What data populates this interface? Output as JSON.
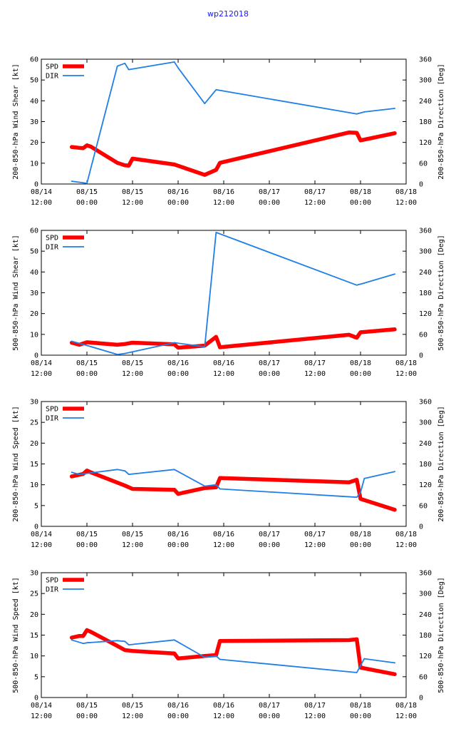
{
  "title": "wp212018",
  "colors": {
    "spd": "#ff0000",
    "dir": "#1f7fe6",
    "axis": "#000000",
    "title": "#1a1aff"
  },
  "x_ticks": [
    {
      "t": 0,
      "line1": "08/14",
      "line2": "12:00"
    },
    {
      "t": 12,
      "line1": "08/15",
      "line2": "00:00"
    },
    {
      "t": 24,
      "line1": "08/15",
      "line2": "12:00"
    },
    {
      "t": 36,
      "line1": "08/16",
      "line2": "00:00"
    },
    {
      "t": 48,
      "line1": "08/16",
      "line2": "12:00"
    },
    {
      "t": 60,
      "line1": "08/17",
      "line2": "00:00"
    },
    {
      "t": 72,
      "line1": "08/17",
      "line2": "12:00"
    },
    {
      "t": 84,
      "line1": "08/18",
      "line2": "00:00"
    },
    {
      "t": 96,
      "line1": "08/18",
      "line2": "12:00"
    }
  ],
  "chart_data": [
    {
      "type": "line",
      "ylabel": "200-850-hPa Wind Shear [kt]",
      "y2label": "200-850-hPa Direction [Deg]",
      "xlim": [
        0,
        96
      ],
      "ylim": [
        0,
        60
      ],
      "y2lim": [
        0,
        360
      ],
      "yticks": [
        0,
        10,
        20,
        30,
        40,
        50,
        60
      ],
      "y2ticks": [
        0,
        60,
        120,
        180,
        240,
        300,
        360
      ],
      "legend": [
        "SPD",
        "DIR"
      ],
      "series": [
        {
          "name": "SPD",
          "axis": "left",
          "x": [
            8,
            10,
            11,
            12,
            13,
            20,
            22,
            23,
            24,
            35,
            43,
            46,
            47,
            81,
            83,
            84,
            93
          ],
          "y": [
            17.8,
            17.4,
            17.2,
            18.6,
            18.0,
            10.2,
            9.0,
            8.8,
            12.2,
            9.4,
            4.4,
            6.8,
            10.2,
            24.8,
            24.6,
            21.0,
            24.4
          ]
        },
        {
          "name": "DIR",
          "axis": "right",
          "x": [
            8,
            12,
            20,
            22,
            23,
            35,
            36,
            43,
            46,
            83,
            85,
            93
          ],
          "y": [
            8,
            2,
            340,
            348,
            330,
            352,
            335,
            232,
            272,
            202,
            208,
            218
          ]
        }
      ]
    },
    {
      "type": "line",
      "ylabel": "500-850-hPa Wind Shear [kt]",
      "y2label": "500-850-hPa Direction [Deg]",
      "xlim": [
        0,
        96
      ],
      "ylim": [
        0,
        60
      ],
      "y2lim": [
        0,
        360
      ],
      "yticks": [
        0,
        10,
        20,
        30,
        40,
        50,
        60
      ],
      "y2ticks": [
        0,
        60,
        120,
        180,
        240,
        300,
        360
      ],
      "legend": [
        "SPD",
        "DIR"
      ],
      "series": [
        {
          "name": "SPD",
          "axis": "left",
          "x": [
            8,
            10,
            12,
            20,
            22,
            24,
            35,
            36,
            43,
            46,
            47,
            81,
            83,
            84,
            93
          ],
          "y": [
            6.0,
            5.0,
            6.2,
            5.0,
            5.4,
            6.0,
            5.2,
            3.6,
            4.6,
            8.8,
            3.8,
            9.8,
            8.4,
            11.0,
            12.4
          ]
        },
        {
          "name": "DIR",
          "axis": "right",
          "x": [
            8,
            12,
            20,
            22,
            35,
            43,
            46,
            83,
            85,
            93
          ],
          "y": [
            40,
            28,
            2,
            5,
            36,
            24,
            354,
            202,
            208,
            234
          ]
        }
      ]
    },
    {
      "type": "line",
      "ylabel": "200-850-hPa Wind Speed [kt]",
      "y2label": "200-850-hPa Direction [Deg]",
      "xlim": [
        0,
        96
      ],
      "ylim": [
        0,
        30
      ],
      "y2lim": [
        0,
        360
      ],
      "yticks": [
        0,
        5,
        10,
        15,
        20,
        25,
        30
      ],
      "y2ticks": [
        0,
        60,
        120,
        180,
        240,
        300,
        360
      ],
      "legend": [
        "SPD",
        "DIR"
      ],
      "series": [
        {
          "name": "SPD",
          "axis": "left",
          "x": [
            8,
            10,
            11,
            12,
            13,
            22,
            24,
            35,
            36,
            43,
            46,
            47,
            81,
            83,
            84,
            93
          ],
          "y": [
            12.0,
            12.4,
            12.6,
            13.4,
            13.0,
            9.8,
            9.0,
            8.8,
            7.8,
            9.2,
            9.4,
            11.6,
            10.6,
            11.2,
            6.6,
            4.0
          ]
        },
        {
          "name": "DIR",
          "axis": "right",
          "x": [
            8,
            10,
            20,
            22,
            23,
            35,
            43,
            46,
            47,
            83,
            84,
            85,
            93
          ],
          "y": [
            156,
            150,
            164,
            160,
            150,
            164,
            116,
            120,
            108,
            84,
            98,
            138,
            158
          ]
        }
      ]
    },
    {
      "type": "line",
      "ylabel": "500-850-hPa Wind Speed [kt]",
      "y2label": "500-850-hPa Direction [Deg]",
      "xlim": [
        0,
        96
      ],
      "ylim": [
        0,
        30
      ],
      "y2lim": [
        0,
        360
      ],
      "yticks": [
        0,
        5,
        10,
        15,
        20,
        25,
        30
      ],
      "y2ticks": [
        0,
        60,
        120,
        180,
        240,
        300,
        360
      ],
      "legend": [
        "SPD",
        "DIR"
      ],
      "series": [
        {
          "name": "SPD",
          "axis": "left",
          "x": [
            8,
            10,
            11,
            12,
            13,
            20,
            22,
            24,
            35,
            36,
            43,
            46,
            47,
            81,
            83,
            84,
            93
          ],
          "y": [
            14.4,
            14.8,
            14.8,
            16.2,
            15.8,
            12.4,
            11.4,
            11.2,
            10.6,
            9.4,
            10.0,
            10.2,
            13.6,
            13.8,
            14.0,
            7.2,
            5.6
          ]
        },
        {
          "name": "DIR",
          "axis": "right",
          "x": [
            8,
            11,
            12,
            20,
            22,
            23,
            35,
            43,
            46,
            47,
            83,
            85,
            93
          ],
          "y": [
            166,
            156,
            158,
            164,
            162,
            152,
            166,
            116,
            120,
            110,
            72,
            112,
            100
          ]
        }
      ]
    }
  ]
}
